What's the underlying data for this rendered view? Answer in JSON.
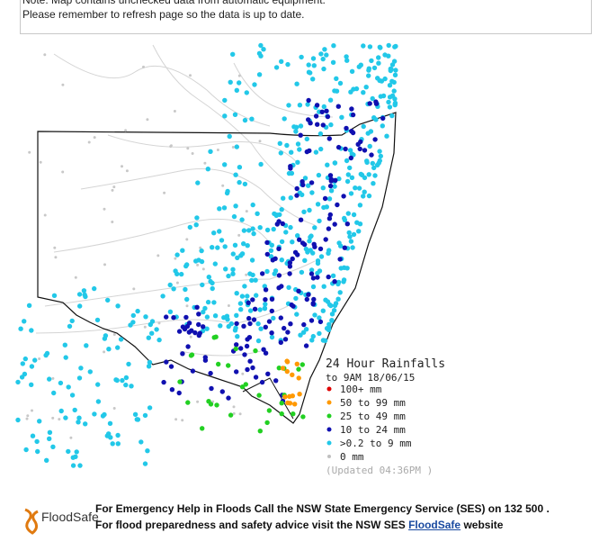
{
  "note": {
    "lines": [
      "Note: Map contains unchecked data from automatic equipment.",
      "Please remember to refresh page so the data is up to date."
    ]
  },
  "legend": {
    "title": "24 Hour Rainfalls",
    "subtitle": "to 9AM 18/06/15",
    "items": [
      "100+ mm",
      "50  to 99 mm",
      "25  to 49 mm",
      "10  to 24 mm",
      ">0.2 to 9 mm",
      "0 mm"
    ],
    "updated": "(Updated 04:36PM  )"
  },
  "footer": {
    "logo": "FloodSafe",
    "line1": "For Emergency Help in Floods Call the NSW State Emergency Service (SES) on 132 500 .",
    "line2_before": "For flood preparedness and safety advice visit the NSW SES ",
    "line2_link": "FloodSafe",
    "line2_after": " website"
  }
}
